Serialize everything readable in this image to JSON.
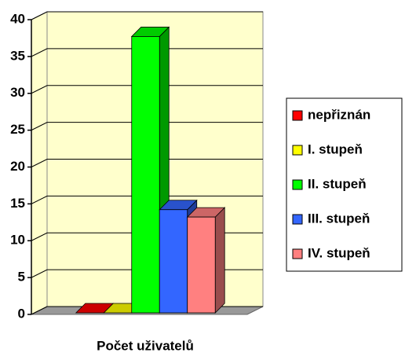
{
  "chart_data": {
    "type": "bar3d",
    "categories": [
      "Počet uživatelů"
    ],
    "series": [
      {
        "name": "nepřiznán",
        "color": "#ff0000",
        "values": [
          0
        ]
      },
      {
        "name": "I. stupeň",
        "color": "#ffff00",
        "values": [
          0
        ]
      },
      {
        "name": "II. stupeň",
        "color": "#00ff00",
        "values": [
          37.5
        ]
      },
      {
        "name": "III. stupeň",
        "color": "#3366ff",
        "values": [
          14
        ]
      },
      {
        "name": "IV. stupeň",
        "color": "#ff8080",
        "values": [
          13
        ]
      }
    ],
    "ylim": [
      0,
      40
    ],
    "yticks": [
      0,
      5,
      10,
      15,
      20,
      25,
      30,
      35,
      40
    ],
    "grid": true,
    "legend": "right"
  }
}
